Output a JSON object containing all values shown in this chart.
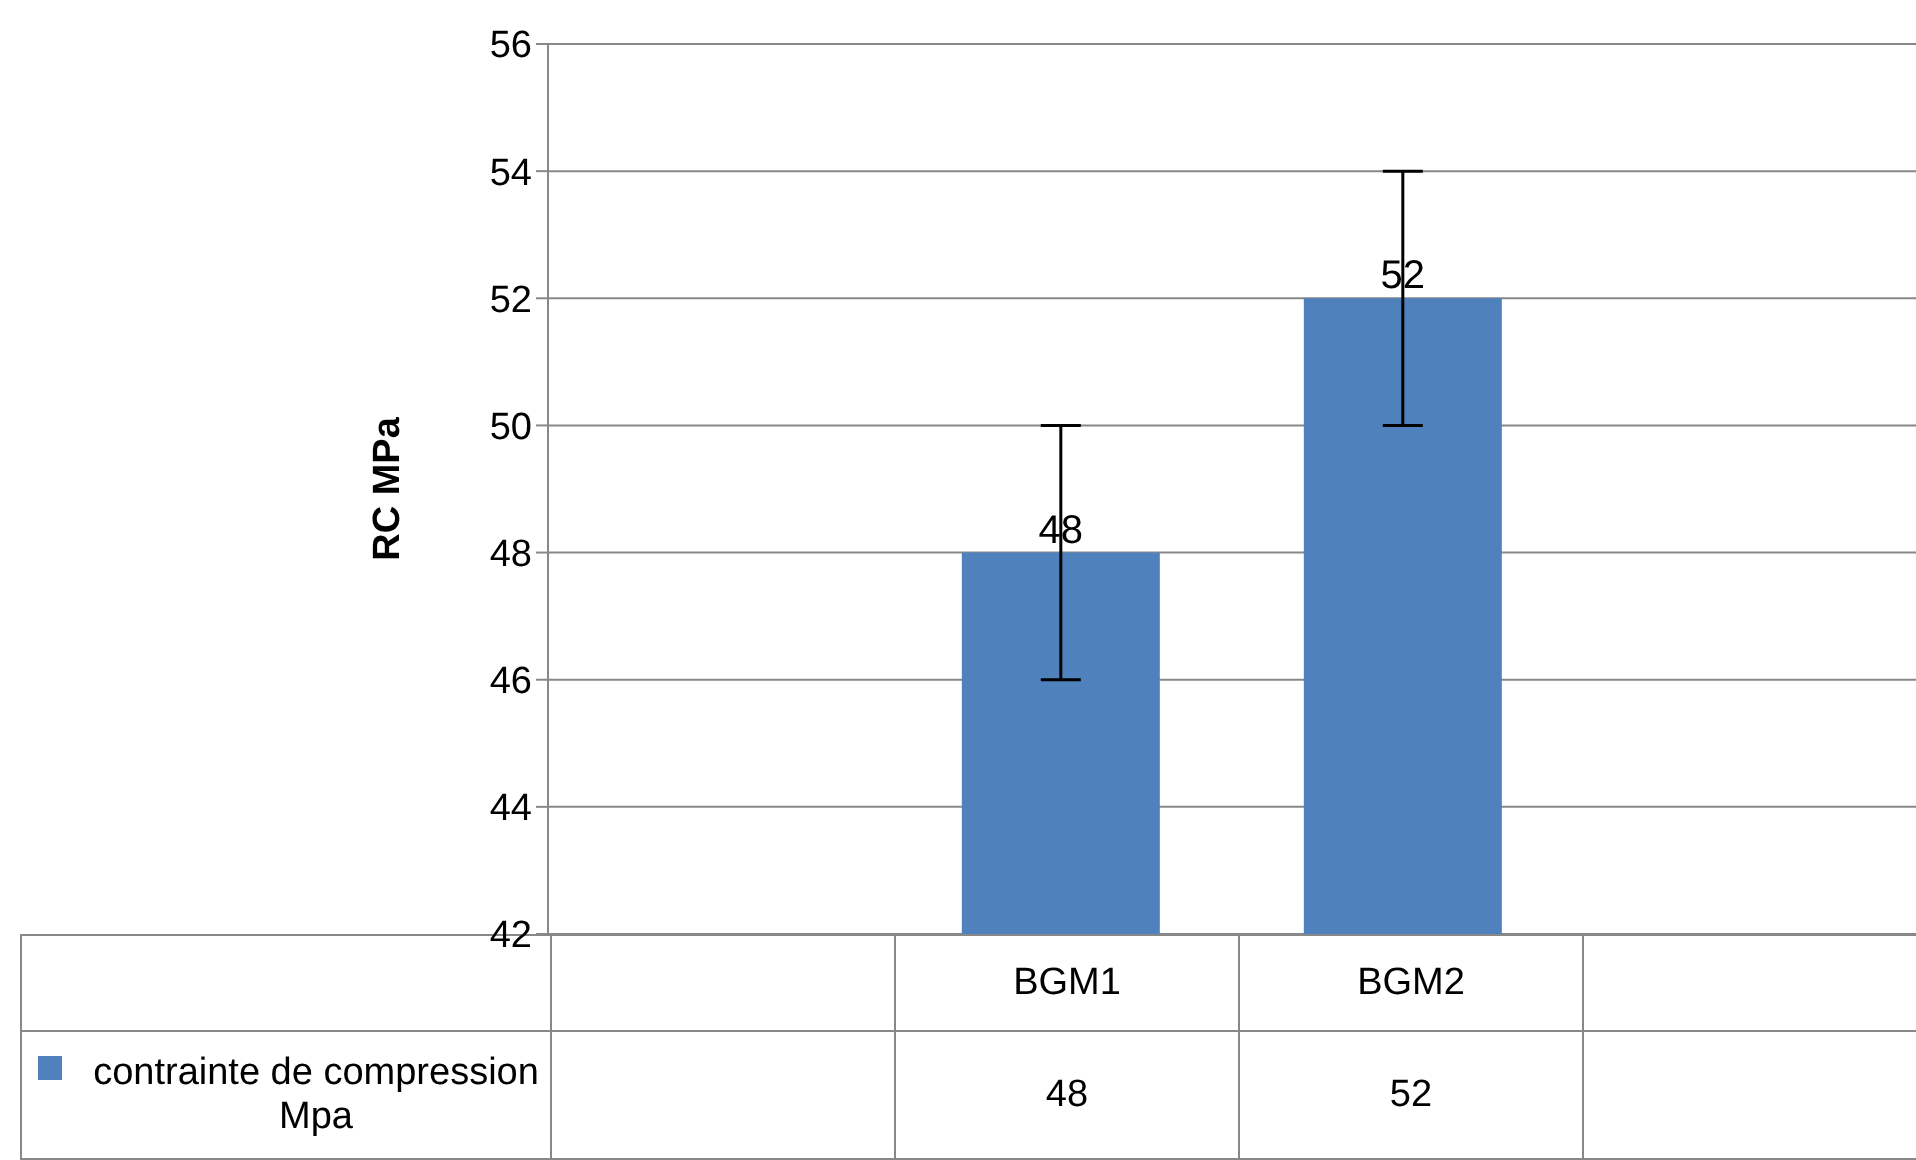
{
  "chart_data": {
    "type": "bar",
    "ylabel": "RC MPa",
    "categories": [
      null,
      "BGM1",
      "BGM2",
      null
    ],
    "series": [
      {
        "name": "contrainte de compression Mpa",
        "color": "#4f81bd",
        "values": [
          null,
          48,
          52,
          null
        ],
        "errors": [
          null,
          2,
          2,
          null
        ],
        "value_labels": [
          null,
          "48",
          "52",
          null
        ]
      }
    ],
    "ylim": [
      42,
      56
    ],
    "yticks": [
      42,
      44,
      46,
      48,
      50,
      52,
      54,
      56
    ],
    "grid": "y",
    "legend": "bottom"
  }
}
